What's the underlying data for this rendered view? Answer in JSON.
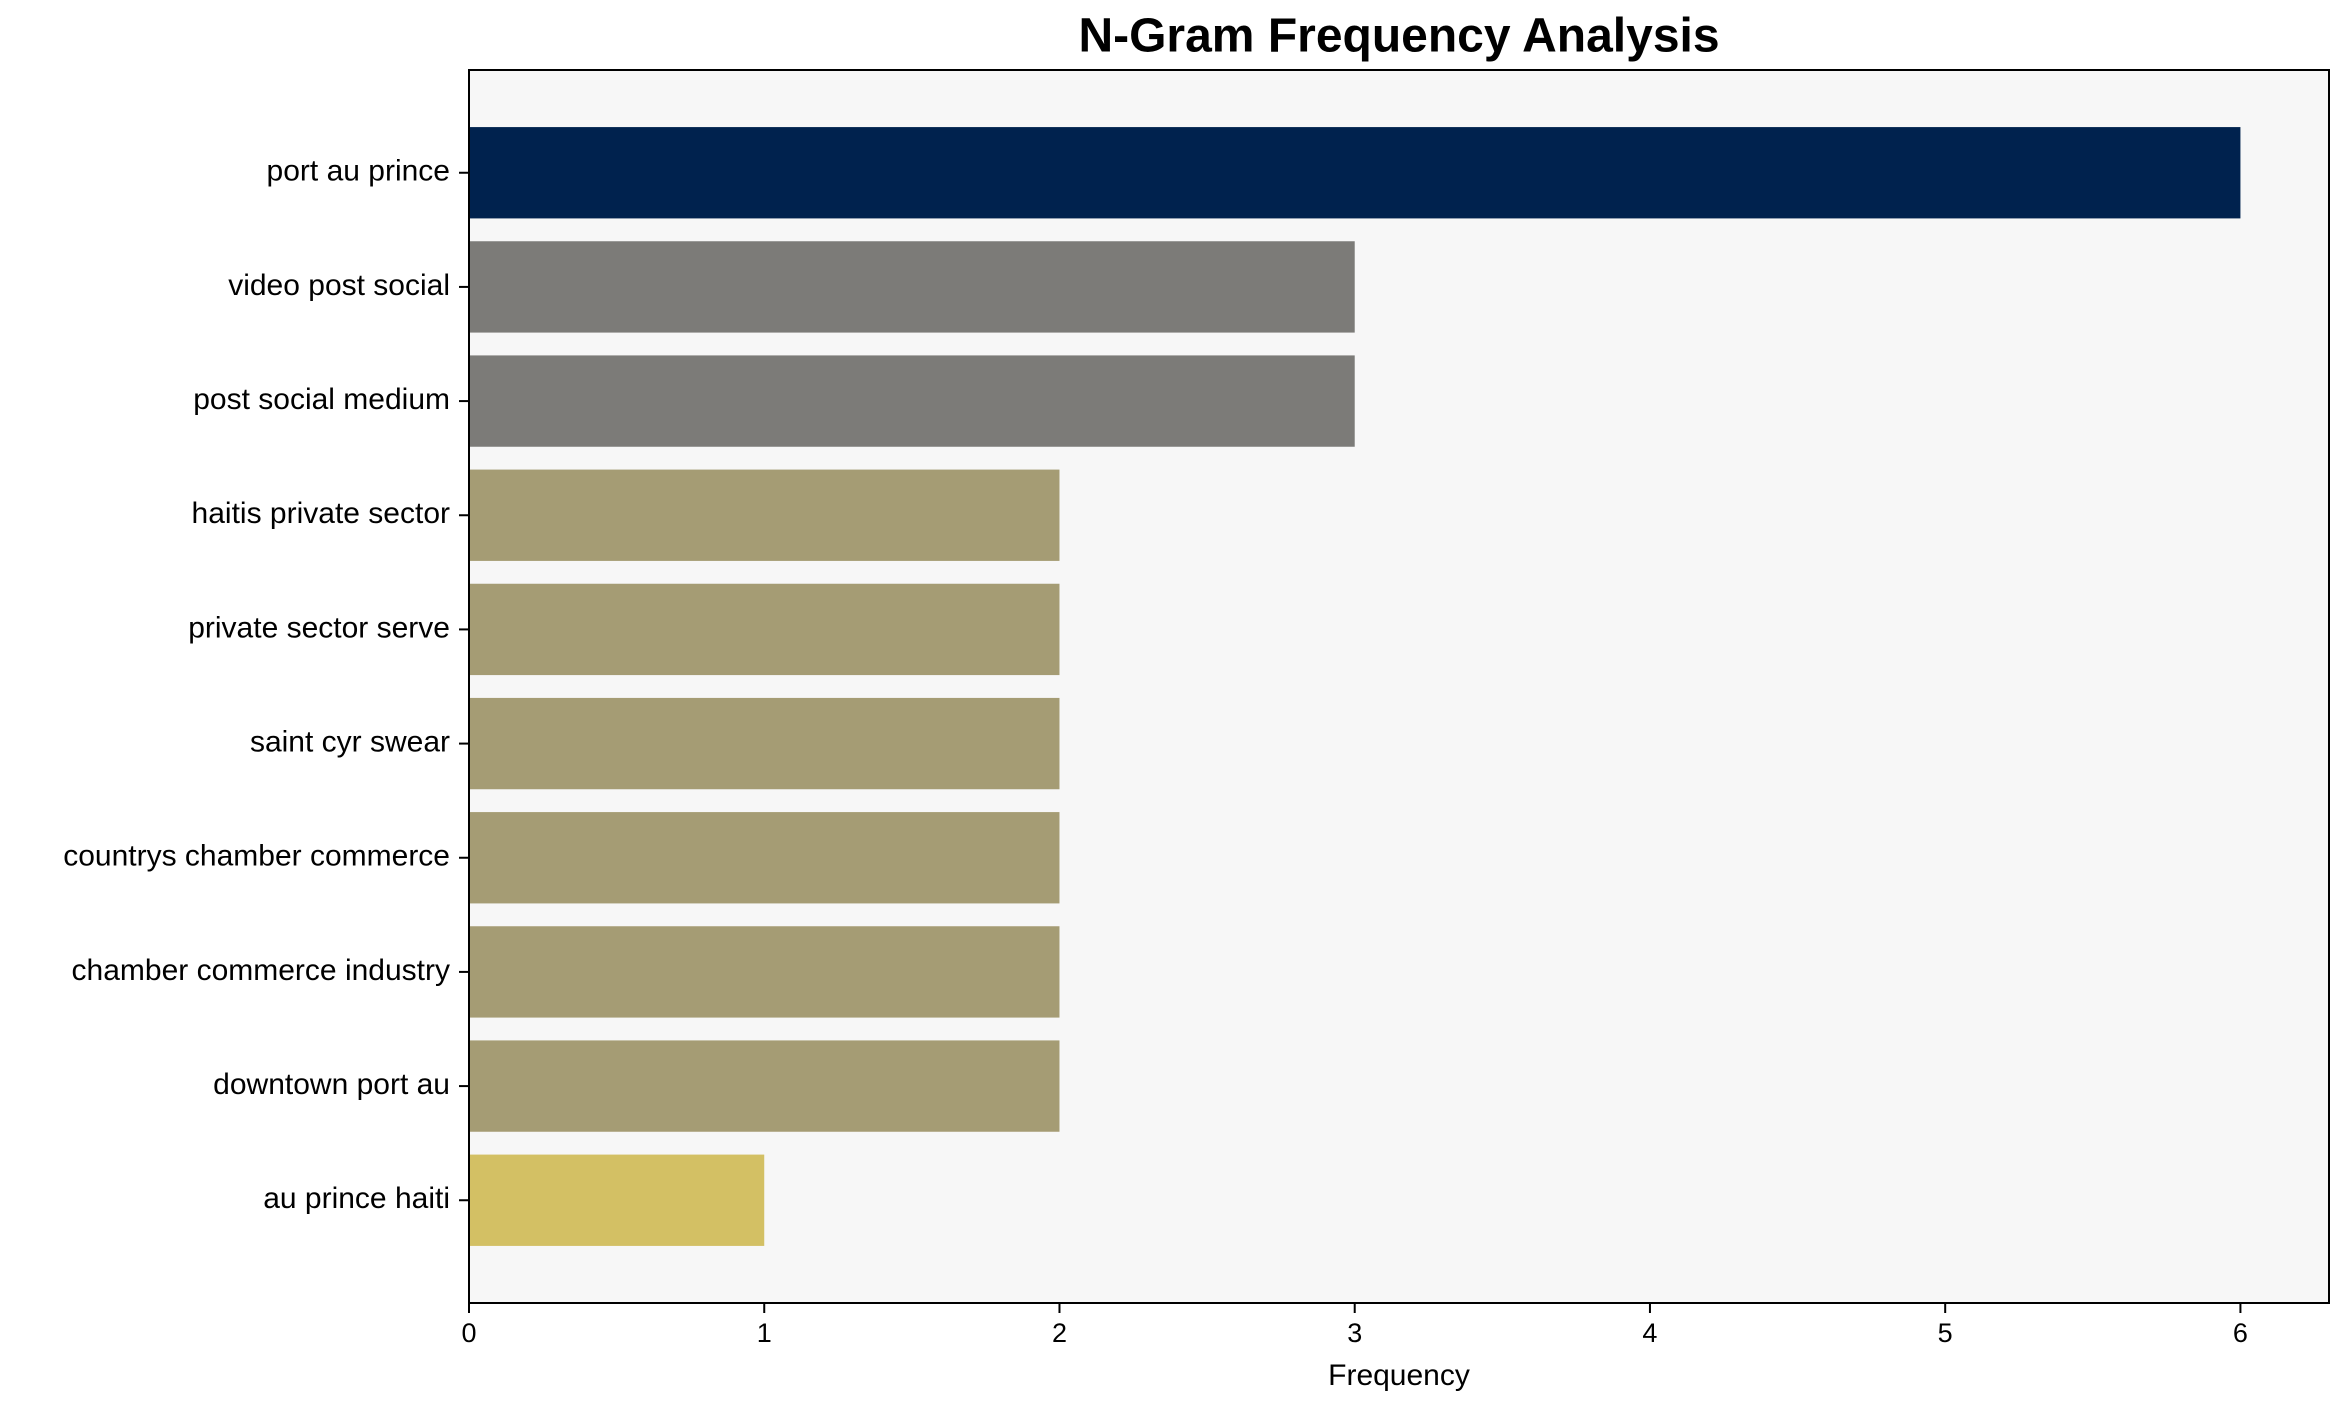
{
  "chart_data": {
    "type": "barh",
    "title": "N-Gram Frequency Analysis",
    "xlabel": "Frequency",
    "categories": [
      "port au prince",
      "video post social",
      "post social medium",
      "haitis private sector",
      "private sector serve",
      "saint cyr swear",
      "countrys chamber commerce",
      "chamber commerce industry",
      "downtown port au",
      "au prince haiti"
    ],
    "values": [
      6,
      3,
      3,
      2,
      2,
      2,
      2,
      2,
      2,
      1
    ],
    "colors": [
      "#00224e",
      "#7c7b78",
      "#7c7b78",
      "#a59c74",
      "#a59c74",
      "#a59c74",
      "#a59c74",
      "#a59c74",
      "#a59c74",
      "#d3c064"
    ],
    "xlim": [
      0,
      6.3
    ],
    "xticks": [
      0,
      1,
      2,
      3,
      4,
      5,
      6
    ],
    "grid": false
  }
}
